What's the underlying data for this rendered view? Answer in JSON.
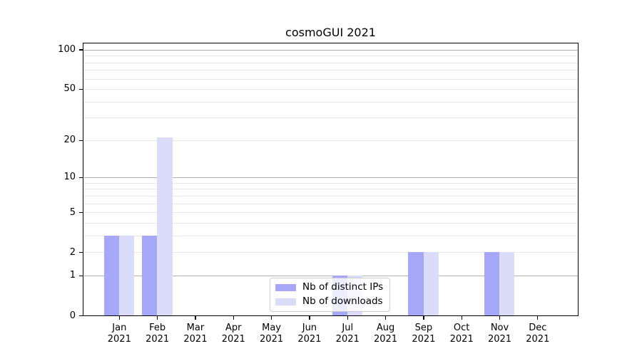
{
  "chart_data": {
    "type": "bar",
    "title": "cosmoGUI 2021",
    "categories": [
      "Jan 2021",
      "Feb 2021",
      "Mar 2021",
      "Apr 2021",
      "May 2021",
      "Jun 2021",
      "Jul 2021",
      "Aug 2021",
      "Sep 2021",
      "Oct 2021",
      "Nov 2021",
      "Dec 2021"
    ],
    "series": [
      {
        "name": "Nb of distinct IPs",
        "color": "#a7a7f9",
        "values": [
          3,
          3,
          0,
          0,
          0,
          0,
          1,
          0,
          2,
          0,
          2,
          0
        ]
      },
      {
        "name": "Nb of downloads",
        "color": "#dbdbfa",
        "values": [
          3,
          21,
          0,
          0,
          0,
          0,
          1,
          0,
          2,
          0,
          2,
          0
        ]
      }
    ],
    "y_axis": {
      "scale": "log1p",
      "tick_labels": [
        "0",
        "1",
        "2",
        "5",
        "10",
        "20",
        "50",
        "100"
      ],
      "major_gridlines": [
        1,
        10,
        100
      ],
      "minor_gridlines": [
        2,
        3,
        4,
        5,
        6,
        7,
        8,
        9,
        20,
        30,
        40,
        50,
        60,
        70,
        80,
        90
      ],
      "ylim": [
        0,
        110
      ]
    },
    "x_axis": {
      "label_year_split": true
    },
    "legend": {
      "position": "lower center"
    },
    "grid": "both"
  }
}
